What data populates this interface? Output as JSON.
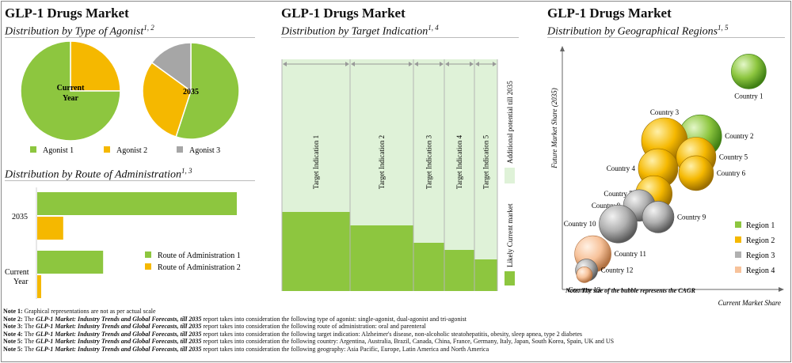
{
  "panel1": {
    "title": "GLP-1 Drugs Market",
    "subtitle": "Distribution by Type of Agonist",
    "subtitle_sup": "1, 2"
  },
  "panel2": {
    "title": "GLP-1 Drugs Market",
    "subtitle": "Distribution by Target Indication",
    "subtitle_sup": "1, 4"
  },
  "panel3": {
    "title": "GLP-1 Drugs Market",
    "subtitle": "Distribution by Geographical Regions",
    "subtitle_sup": "1, 5"
  },
  "panel4": {
    "subtitle": "Distribution by Route of Administration",
    "subtitle_sup": "1, 3"
  },
  "colors": {
    "green": "#8dc63f",
    "yellow": "#f5b800",
    "gray": "#a6a6a6",
    "peach": "#f7c29a",
    "light_green": "#dff2d8",
    "region_gray": "#b0b0b0"
  },
  "chart_data": [
    {
      "type": "pie",
      "id": "agonist",
      "pies": [
        {
          "label": "Current Year",
          "series": [
            {
              "name": "Agonist 1",
              "value": 75
            },
            {
              "name": "Agonist 2",
              "value": 25
            },
            {
              "name": "Agonist 3",
              "value": 0
            }
          ]
        },
        {
          "label": "2035",
          "series": [
            {
              "name": "Agonist 1",
              "value": 55
            },
            {
              "name": "Agonist 2",
              "value": 30
            },
            {
              "name": "Agonist 3",
              "value": 15
            }
          ]
        }
      ],
      "legend": [
        "Agonist 1",
        "Agonist 2",
        "Agonist 3"
      ]
    },
    {
      "type": "bar",
      "id": "indication",
      "categories": [
        "Target Indication 1",
        "Target Indication 2",
        "Target Indication 3",
        "Target Indication 4",
        "Target Indication 5"
      ],
      "widths": [
        86,
        80,
        39,
        38,
        29
      ],
      "series": [
        {
          "name": "Likely Current market",
          "values": [
            100,
            83,
            61,
            52,
            40
          ]
        },
        {
          "name": "Additional potential till 2035",
          "values": [
            253,
            270,
            292,
            301,
            313
          ]
        }
      ],
      "legend": [
        "Additional potential till 2035",
        "Likely Current market"
      ]
    },
    {
      "type": "bar",
      "id": "route",
      "orientation": "horizontal",
      "categories": [
        "2035",
        "Current Year"
      ],
      "series": [
        {
          "name": "Route of Administration 1",
          "values": [
            100,
            33
          ]
        },
        {
          "name": "Route of Administration 2",
          "values": [
            13,
            2
          ]
        }
      ],
      "legend": [
        "Route of Administration 1",
        "Route of Administration 2"
      ]
    },
    {
      "type": "scatter",
      "id": "regions",
      "xlabel": "Current Market Share",
      "ylabel": "Future Market Share (2035)",
      "xlim": [
        0,
        100
      ],
      "ylim": [
        0,
        100
      ],
      "points": [
        {
          "label": "Country 1",
          "x": 87,
          "y": 93,
          "size": 22,
          "region": "Region 1"
        },
        {
          "label": "Country 2",
          "x": 64,
          "y": 65,
          "size": 27,
          "region": "Region 1"
        },
        {
          "label": "Country 3",
          "x": 47,
          "y": 63,
          "size": 29,
          "region": "Region 2"
        },
        {
          "label": "Country 4",
          "x": 44,
          "y": 51,
          "size": 25,
          "region": "Region 2"
        },
        {
          "label": "Country 5",
          "x": 62,
          "y": 56,
          "size": 25,
          "region": "Region 2"
        },
        {
          "label": "Country 6",
          "x": 62,
          "y": 49,
          "size": 22,
          "region": "Region 2"
        },
        {
          "label": "Country 7",
          "x": 42,
          "y": 40,
          "size": 23,
          "region": "Region 2"
        },
        {
          "label": "Country 8",
          "x": 35,
          "y": 35,
          "size": 20,
          "region": "Region 3"
        },
        {
          "label": "Country 9",
          "x": 44,
          "y": 30,
          "size": 20,
          "region": "Region 3"
        },
        {
          "label": "Country 10",
          "x": 25,
          "y": 27,
          "size": 24,
          "region": "Region 3"
        },
        {
          "label": "Country 11",
          "x": 13,
          "y": 14,
          "size": 23,
          "region": "Region 4"
        },
        {
          "label": "Country 12",
          "x": 10,
          "y": 7,
          "size": 14,
          "region": "Region 3"
        },
        {
          "label": "Country 13",
          "x": 9,
          "y": 5,
          "size": 10,
          "region": "Region 4"
        }
      ],
      "legend": [
        "Region 1",
        "Region 2",
        "Region 3",
        "Region 4"
      ],
      "note": "Note: The size of the bubble represents the CAGR"
    }
  ],
  "notes": [
    {
      "label": "Note 1:",
      "text": "Graphical representations are not as per actual scale"
    },
    {
      "label": "Note 2:",
      "pre": "The ",
      "report": "GLP-1 Market: Industry Trends and Global Forecasts, till 2035",
      "text": " report takes into consideration the following type of agonist: single-agonist, dual-agonist and tri-agonist"
    },
    {
      "label": "Note 3:",
      "pre": "The ",
      "report": "GLP-1 Market: Industry Trends and Global Forecasts, till 2035",
      "text": " report takes into consideration the following route of administration: oral and parenteral"
    },
    {
      "label": "Note 4:",
      "pre": "The ",
      "report": "GLP-1 Market: Industry Trends and Global Forecasts, till 2035",
      "text": " report takes into consideration the following target indication: Alzheimer's disease, non-alcoholic steatohepatitis, obesity, sleep apnea, type 2 diabetes"
    },
    {
      "label": "Note 5:",
      "pre": "The ",
      "report": "GLP-1 Market: Industry Trends and Global Forecasts, till 2035",
      "text": " report takes into consideration the following country: Argentina, Australia, Brazil, Canada, China, France, Germany, Italy, Japan, South Korea, Spain, UK and US"
    },
    {
      "label": "Note 5:",
      "pre": "The ",
      "report": "GLP-1 Market: Industry Trends and Global Forecasts, till 2035",
      "text": " report takes into consideration the following geography: Asia Pacific, Europe, Latin America and North America"
    }
  ]
}
